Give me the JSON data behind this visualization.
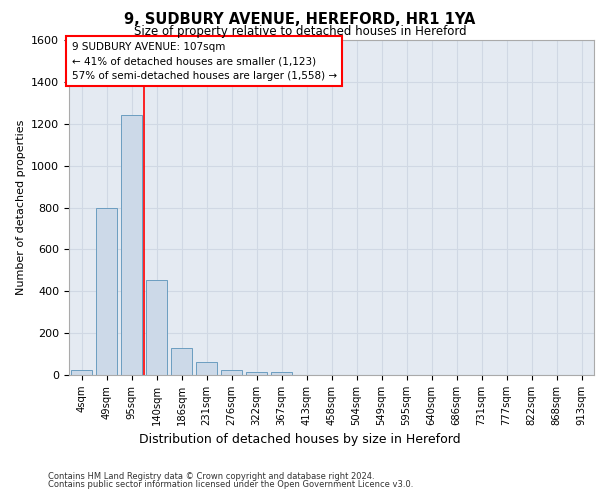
{
  "title_line1": "9, SUDBURY AVENUE, HEREFORD, HR1 1YA",
  "title_line2": "Size of property relative to detached houses in Hereford",
  "xlabel": "Distribution of detached houses by size in Hereford",
  "ylabel": "Number of detached properties",
  "footer_line1": "Contains HM Land Registry data © Crown copyright and database right 2024.",
  "footer_line2": "Contains public sector information licensed under the Open Government Licence v3.0.",
  "annotation_line1": "9 SUDBURY AVENUE: 107sqm",
  "annotation_line2": "← 41% of detached houses are smaller (1,123)",
  "annotation_line3": "57% of semi-detached houses are larger (1,558) →",
  "bar_labels": [
    "4sqm",
    "49sqm",
    "95sqm",
    "140sqm",
    "186sqm",
    "231sqm",
    "276sqm",
    "322sqm",
    "367sqm",
    "413sqm",
    "458sqm",
    "504sqm",
    "549sqm",
    "595sqm",
    "640sqm",
    "686sqm",
    "731sqm",
    "777sqm",
    "822sqm",
    "868sqm",
    "913sqm"
  ],
  "bar_values": [
    22,
    800,
    1240,
    455,
    128,
    62,
    22,
    15,
    15,
    0,
    0,
    0,
    0,
    0,
    0,
    0,
    0,
    0,
    0,
    0,
    0
  ],
  "bar_color": "#ccd9e8",
  "bar_edge_color": "#6b9dc0",
  "grid_color": "#d0d8e4",
  "background_color": "#e4eaf2",
  "red_line_x": 2.5,
  "ylim": [
    0,
    1600
  ],
  "yticks": [
    0,
    200,
    400,
    600,
    800,
    1000,
    1200,
    1400,
    1600
  ]
}
